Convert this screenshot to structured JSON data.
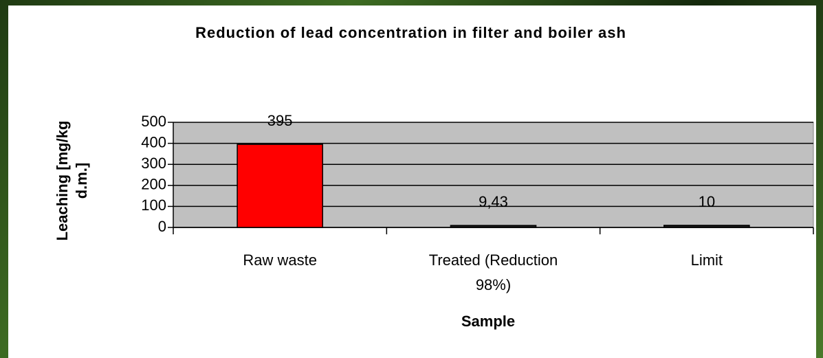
{
  "chart_data": {
    "type": "bar",
    "title": "Reduction of lead concentration in filter and boiler ash",
    "x_label": "Sample",
    "y_label": "Leaching [mg/kg d.m.]",
    "categories": [
      "Raw waste",
      "Treated (Reduction 98%)",
      "Limit"
    ],
    "values": [
      395,
      9.43,
      10
    ],
    "value_labels": [
      "395",
      "9,43",
      "10"
    ],
    "colors": [
      "#ff0000",
      "#1a1a1a",
      "#1a1a1a"
    ],
    "ylim": [
      0,
      500
    ],
    "yticks": [
      0,
      100,
      200,
      300,
      400,
      500
    ],
    "grid": true
  }
}
